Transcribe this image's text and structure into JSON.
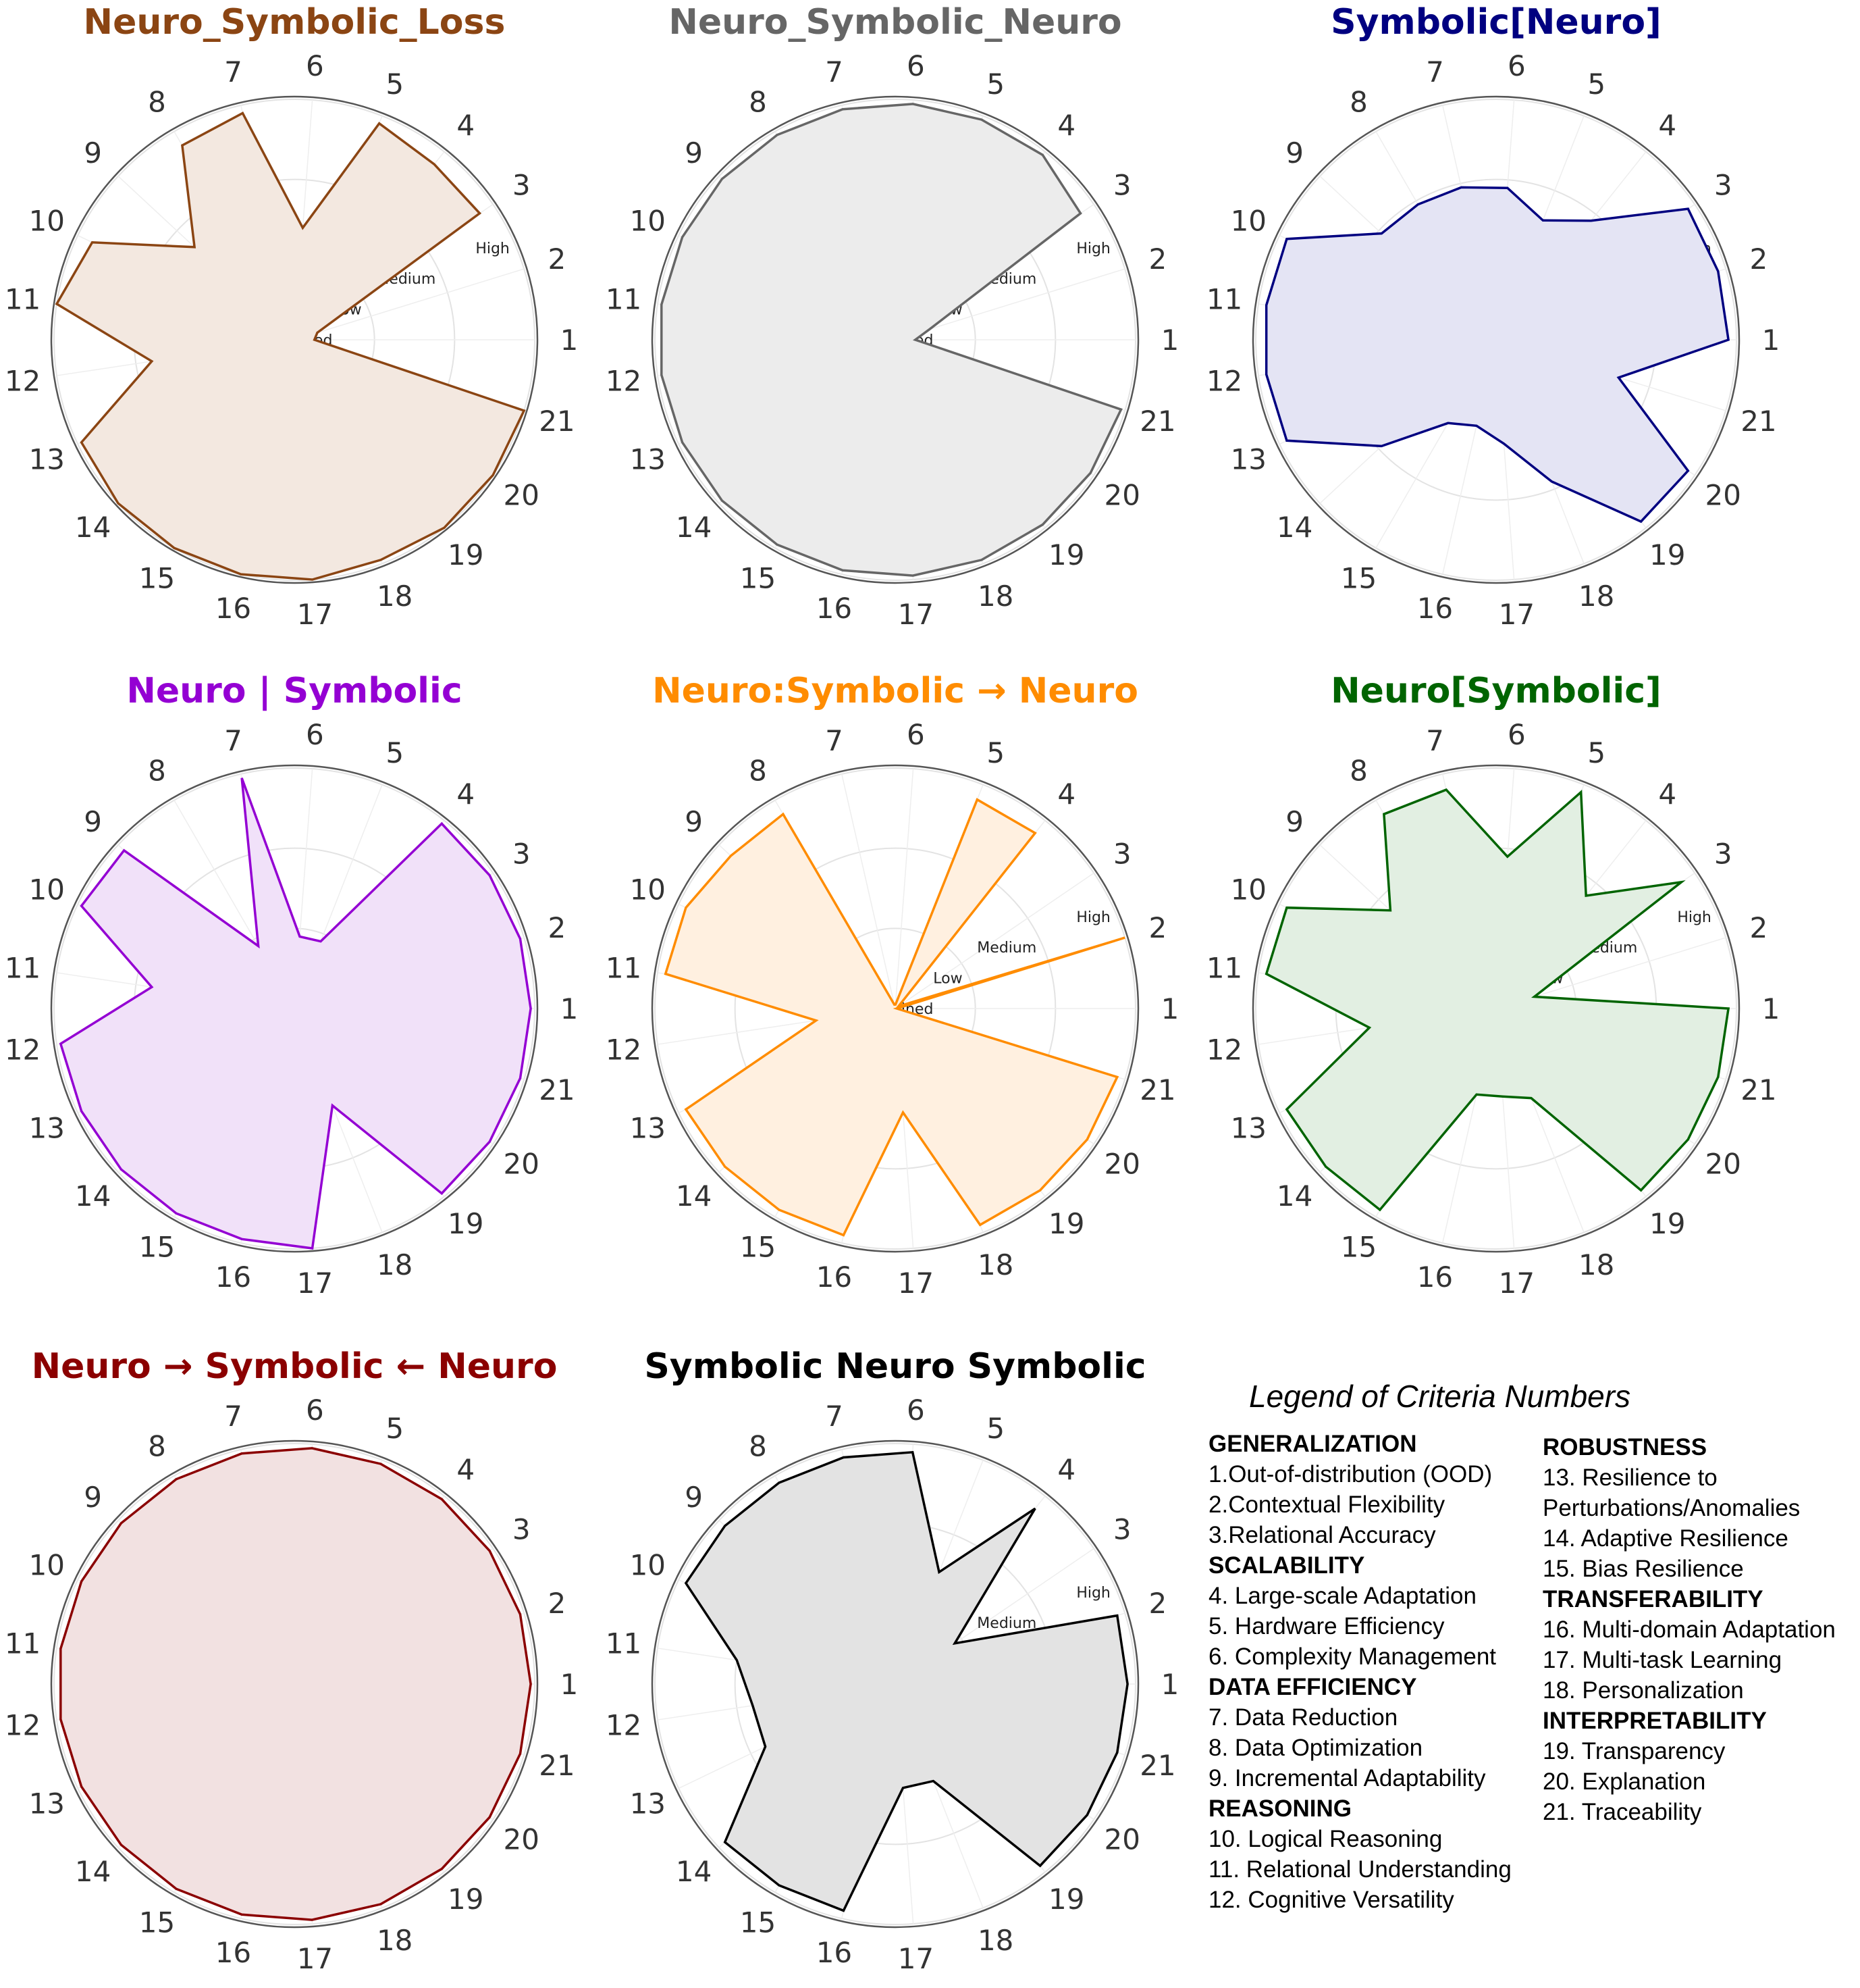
{
  "level_labels": [
    "Undefined",
    "Low",
    "Medium",
    "High"
  ],
  "charts": [
    {
      "title": "Neuro_Symbolic_Loss",
      "color": "#8b4513",
      "fill": "#f3e8e0"
    },
    {
      "title": "Neuro_Symbolic_Neuro",
      "color": "#666666",
      "fill": "#ececec"
    },
    {
      "title": "Symbolic[Neuro]",
      "color": "#000080",
      "fill": "#e4e4f4"
    },
    {
      "title": "Neuro | Symbolic",
      "color": "#9400d3",
      "fill": "#f1e1f9"
    },
    {
      "title": "Neuro:Symbolic → Neuro",
      "color": "#ff8c00",
      "fill": "#fff0e0"
    },
    {
      "title": "Neuro[Symbolic]",
      "color": "#006400",
      "fill": "#e2efe2"
    },
    {
      "title": "Neuro → Symbolic ← Neuro",
      "color": "#8b0000",
      "fill": "#f2e1e1"
    },
    {
      "title": "Symbolic Neuro Symbolic",
      "color": "#000000",
      "fill": "#e3e3e3"
    }
  ],
  "chart_data": [
    {
      "type": "radar",
      "title": "Neuro_Symbolic_Loss",
      "categories": [
        "1",
        "2",
        "3",
        "4",
        "5",
        "6",
        "7",
        "8",
        "9",
        "10",
        "11",
        "12",
        "13",
        "14",
        "15",
        "16",
        "17",
        "18",
        "19",
        "20",
        "21"
      ],
      "scale": [
        "Undefined",
        "Low",
        "Medium",
        "High"
      ],
      "ylim": [
        0,
        3
      ],
      "values": [
        0.25,
        0.3,
        2.8,
        2.8,
        2.9,
        1.4,
        2.9,
        2.8,
        1.7,
        2.8,
        3.0,
        1.8,
        2.95,
        3.0,
        3.0,
        3.0,
        3.0,
        2.95,
        3.0,
        3.0,
        3.0
      ]
    },
    {
      "type": "radar",
      "title": "Neuro_Symbolic_Neuro",
      "categories": [
        "1",
        "2",
        "3",
        "4",
        "5",
        "6",
        "7",
        "8",
        "9",
        "10",
        "11",
        "12",
        "13",
        "14",
        "15",
        "16",
        "17",
        "18",
        "19",
        "20",
        "21"
      ],
      "scale": [
        "Undefined",
        "Low",
        "Medium",
        "High"
      ],
      "ylim": [
        0,
        3
      ],
      "values": [
        0.25,
        0.45,
        2.8,
        2.95,
        2.95,
        2.95,
        2.95,
        2.95,
        2.95,
        2.95,
        2.95,
        2.95,
        2.95,
        2.95,
        2.95,
        2.95,
        2.95,
        2.95,
        2.95,
        2.95,
        2.95
      ]
    },
    {
      "type": "radar",
      "title": "Symbolic[Neuro]",
      "categories": [
        "1",
        "2",
        "3",
        "4",
        "5",
        "6",
        "7",
        "8",
        "9",
        "10",
        "11",
        "12",
        "13",
        "14",
        "15",
        "16",
        "17",
        "18",
        "19",
        "20",
        "21"
      ],
      "scale": [
        "Undefined",
        "Low",
        "Medium",
        "High"
      ],
      "ylim": [
        0,
        3
      ],
      "values": [
        2.9,
        2.9,
        2.9,
        1.9,
        1.6,
        1.9,
        1.95,
        1.95,
        1.95,
        2.9,
        2.9,
        2.9,
        2.9,
        1.95,
        1.2,
        1.1,
        1.3,
        1.9,
        2.9,
        2.9,
        1.6
      ]
    },
    {
      "type": "radar",
      "title": "Neuro | Symbolic",
      "categories": [
        "1",
        "2",
        "3",
        "4",
        "5",
        "6",
        "7",
        "8",
        "9",
        "10",
        "11",
        "12",
        "13",
        "14",
        "15",
        "16",
        "17",
        "18",
        "19",
        "20",
        "21"
      ],
      "scale": [
        "Undefined",
        "Low",
        "Medium",
        "High"
      ],
      "ylim": [
        0,
        3
      ],
      "values": [
        2.95,
        2.95,
        2.95,
        2.95,
        0.9,
        0.9,
        2.95,
        0.9,
        2.9,
        2.95,
        1.8,
        2.95,
        2.95,
        2.95,
        2.95,
        2.95,
        3.0,
        1.3,
        2.95,
        2.95,
        2.95
      ]
    },
    {
      "type": "radar",
      "title": "Neuro:Symbolic → Neuro",
      "categories": [
        "1",
        "2",
        "3",
        "4",
        "5",
        "6",
        "7",
        "8",
        "9",
        "10",
        "11",
        "12",
        "13",
        "14",
        "15",
        "16",
        "17",
        "18",
        "19",
        "20",
        "21"
      ],
      "scale": [
        "Undefined",
        "Low",
        "Medium",
        "High"
      ],
      "ylim": [
        0,
        3
      ],
      "values": [
        0.02,
        3.0,
        0.05,
        2.8,
        2.8,
        0.05,
        0.05,
        2.8,
        2.8,
        2.9,
        2.9,
        1.0,
        2.9,
        2.9,
        2.9,
        2.9,
        1.3,
        2.9,
        2.9,
        2.9,
        2.9
      ]
    },
    {
      "type": "radar",
      "title": "Neuro[Symbolic]",
      "categories": [
        "1",
        "2",
        "3",
        "4",
        "5",
        "6",
        "7",
        "8",
        "9",
        "10",
        "11",
        "12",
        "13",
        "14",
        "15",
        "16",
        "17",
        "18",
        "19",
        "20",
        "21"
      ],
      "scale": [
        "Undefined",
        "Low",
        "Medium",
        "High"
      ],
      "ylim": [
        0,
        3
      ],
      "values": [
        2.9,
        0.5,
        2.8,
        1.8,
        2.9,
        1.9,
        2.8,
        2.8,
        1.8,
        2.9,
        2.9,
        1.6,
        2.9,
        2.9,
        2.9,
        1.1,
        1.1,
        1.2,
        2.9,
        2.9,
        2.9
      ]
    },
    {
      "type": "radar",
      "title": "Neuro → Symbolic ← Neuro",
      "categories": [
        "1",
        "2",
        "3",
        "4",
        "5",
        "6",
        "7",
        "8",
        "9",
        "10",
        "11",
        "12",
        "13",
        "14",
        "15",
        "16",
        "17",
        "18",
        "19",
        "20",
        "21"
      ],
      "scale": [
        "Undefined",
        "Low",
        "Medium",
        "High"
      ],
      "ylim": [
        0,
        3
      ],
      "values": [
        2.95,
        2.95,
        2.95,
        2.95,
        2.95,
        2.95,
        2.95,
        2.95,
        2.95,
        2.95,
        2.95,
        2.95,
        2.95,
        2.95,
        2.95,
        2.95,
        2.95,
        2.95,
        2.95,
        2.95,
        2.95
      ]
    },
    {
      "type": "radar",
      "title": "Symbolic Neuro Symbolic",
      "categories": [
        "1",
        "2",
        "3",
        "4",
        "5",
        "6",
        "7",
        "8",
        "9",
        "10",
        "11",
        "12",
        "13",
        "14",
        "15",
        "16",
        "17",
        "18",
        "19",
        "20",
        "21"
      ],
      "scale": [
        "Undefined",
        "Low",
        "Medium",
        "High"
      ],
      "ylim": [
        0,
        3
      ],
      "values": [
        2.9,
        2.9,
        0.9,
        2.8,
        1.5,
        2.9,
        2.9,
        2.9,
        2.9,
        2.9,
        2.0,
        1.8,
        1.8,
        2.9,
        2.9,
        2.9,
        1.3,
        1.3,
        2.9,
        2.9,
        2.9
      ]
    }
  ],
  "legend": {
    "title": "Legend of Criteria Numbers",
    "columns": [
      [
        {
          "header": "GENERALIZATION",
          "items": [
            "1.Out-of-distribution (OOD)",
            "2.Contextual Flexibility",
            "3.Relational Accuracy"
          ]
        },
        {
          "header": "SCALABILITY",
          "items": [
            "4. Large-scale Adaptation",
            "5. Hardware Efficiency",
            "6. Complexity Management"
          ]
        },
        {
          "header": "DATA EFFICIENCY",
          "items": [
            "7. Data Reduction",
            "8. Data Optimization",
            "9. Incremental Adaptability"
          ]
        },
        {
          "header": "REASONING",
          "items": [
            "10. Logical Reasoning",
            "11. Relational Understanding",
            "12. Cognitive Versatility"
          ]
        }
      ],
      [
        {
          "header": "ROBUSTNESS",
          "items": [
            "13. Resilience to Perturbations/Anomalies",
            "14. Adaptive Resilience",
            "15. Bias Resilience"
          ]
        },
        {
          "header": "TRANSFERABILITY",
          "items": [
            "16. Multi-domain Adaptation",
            "17. Multi-task Learning",
            "18. Personalization"
          ]
        },
        {
          "header": "INTERPRETABILITY",
          "items": [
            "19. Transparency",
            "20. Explanation",
            "21. Traceability"
          ]
        }
      ]
    ]
  }
}
